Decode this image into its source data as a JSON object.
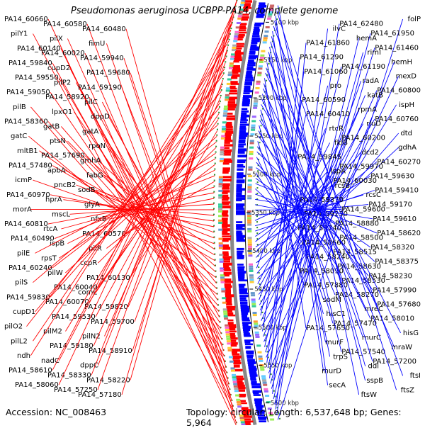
{
  "header": {
    "title": "Pseudomonas aeruginosa UCBPP-PA14, complete genome"
  },
  "footer": {
    "accession": "Accession: NC_008463",
    "topology": "Topology: circular; Length: 6,537,648 bp; Genes: 5,964"
  },
  "colors": {
    "forward_strand": "#ff0000",
    "reverse_strand": "#0000ff",
    "backbone": "#888888",
    "dotted_track": "#2a8a2a",
    "label_text": "#000000"
  },
  "scale_labels": [
    "5600 kbp",
    "5550 kbp",
    "5500 kbp",
    "5450 kbp",
    "5400 kbp",
    "5350 kbp",
    "5300 kbp",
    "5250 kbp",
    "5200 kbp",
    "5150 kbp",
    "5100 kbp"
  ],
  "forward_labels": [
    "PA14_60660",
    "PA14_60580",
    "PA14_60480",
    "pilY1",
    "pilX",
    "fimU",
    "PA14_60140",
    "PA14_60020",
    "PA14_59940",
    "PA14_59840",
    "cupD2",
    "PA14_59680",
    "PA14_59550",
    "pilP2",
    "PA14_59190",
    "PA14_59050",
    "PA14_58920",
    "pilC",
    "pilB",
    "lpxO1",
    "dppD",
    "PA14_58360",
    "gatB",
    "gatA",
    "gatC",
    "ptsN",
    "rpoN",
    "mltB1",
    "PA14_57690",
    "gmhA",
    "PA14_57480",
    "apbA",
    "fabG",
    "icmP",
    "pncB2",
    "sodB",
    "PA14_60970",
    "hprA",
    "glyA",
    "morA",
    "mscL",
    "nfxB",
    "PA14_60810",
    "rtcA",
    "PA14_60570",
    "PA14_60490",
    "ispB",
    "pilR",
    "pilE",
    "rpsT",
    "ccpR",
    "PA14_60240",
    "pilW",
    "PA14_60130",
    "pilS",
    "PA14_60040",
    "comL",
    "PA14_59830",
    "PA14_60070",
    "PA14_59820",
    "cupD1",
    "PA14_59530",
    "PA14_59700",
    "pilO2",
    "pilM2",
    "pilN2",
    "pilL2",
    "PA14_59180",
    "PA14_58910",
    "ndh",
    "nadC",
    "dppC",
    "PA14_58610",
    "PA14_58330",
    "PA14_58220",
    "PA14_58060",
    "PA14_57250",
    "PA14_57180"
  ],
  "reverse_labels": [
    "folP",
    "PA14_62480",
    "ilvC",
    "PA14_61950",
    "hemA",
    "PA14_61860",
    "PA14_61460",
    "rimI",
    "PA14_61290",
    "hemH",
    "PA14_61190",
    "PA14_61060",
    "mexD",
    "radA",
    "pro",
    "PA14_60800",
    "katB",
    "PA14_60590",
    "ispH",
    "rpmA",
    "PA14_60410",
    "PA14_60760",
    "rluD",
    "rtcR",
    "dtd",
    "PA14_60200",
    "fklB",
    "gdhA",
    "dcd2",
    "PA14_59845",
    "PA14_60270",
    "PA14_59970",
    "lspA",
    "PA14_59630",
    "PA14_60030",
    "rcsB",
    "PA14_59410",
    "rcsC",
    "PA14_59370",
    "PA14_59170",
    "PA14_59600",
    "PA14_59230",
    "PA14_59610",
    "PA14_58880",
    "PA14_58740",
    "PA14_58620",
    "PA14_58500",
    "PA14_58660",
    "PA14_58320",
    "PA14_58515",
    "PA14_58240",
    "PA14_58375",
    "PA14_58630",
    "PA14_58090",
    "PA14_58230",
    "PA14_58530",
    "PA14_57880",
    "PA14_57990",
    "PA14_58270",
    "sodM",
    "PA14_57680",
    "mreC",
    "hisC1",
    "PA14_58010",
    "PA14_57470",
    "PA14_57650",
    "hisG",
    "murC",
    "murF",
    "mraW",
    "PA14_57540",
    "trpS",
    "PA14_57200",
    "ddl",
    "murD",
    "ftsI",
    "sspB",
    "secA",
    "ftsZ",
    "ftsW"
  ]
}
